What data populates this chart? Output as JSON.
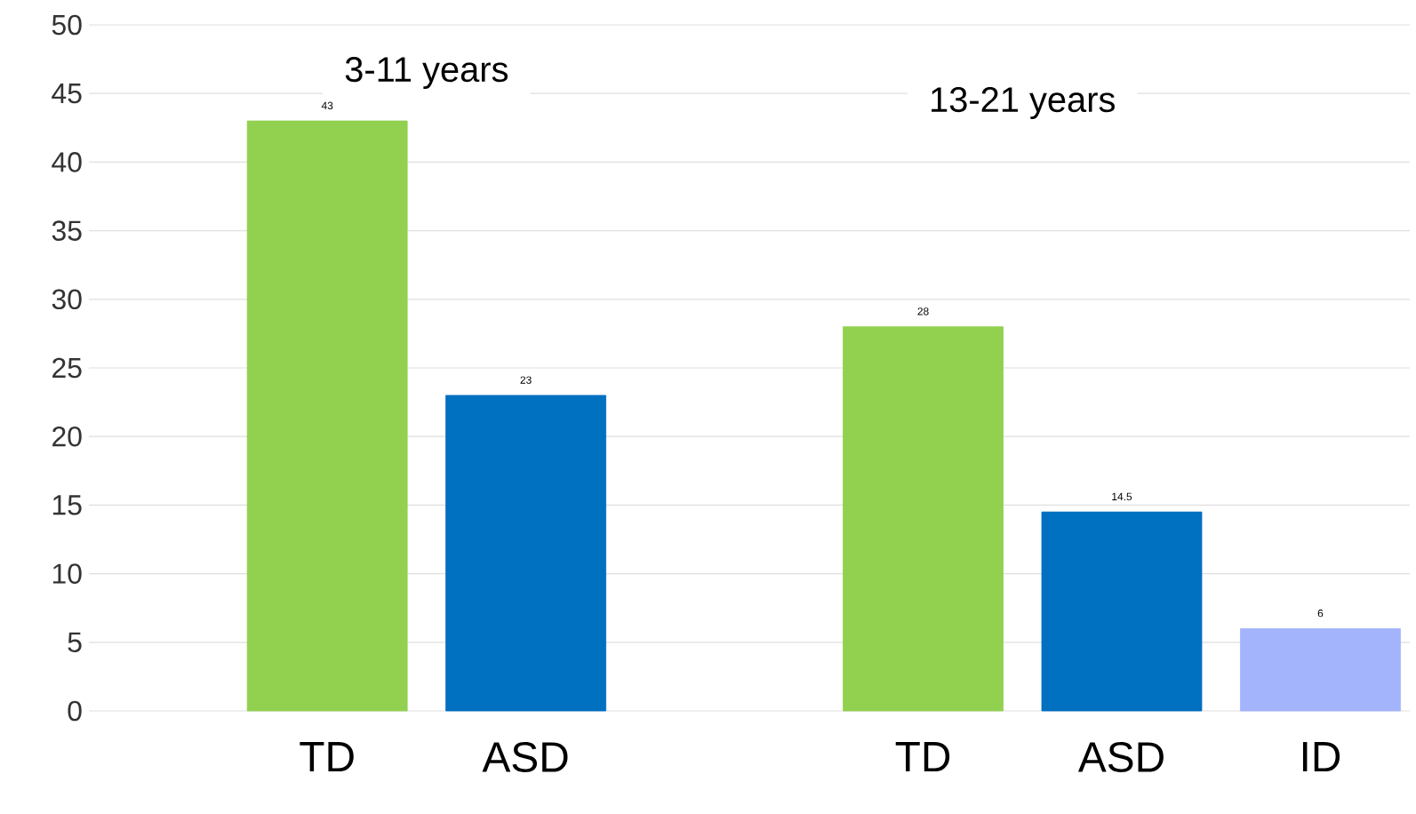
{
  "chart_data": {
    "type": "bar",
    "categories": [
      "TD",
      "ASD",
      null,
      "TD",
      "ASD",
      "ID"
    ],
    "values": [
      43,
      23,
      null,
      28,
      14.5,
      6
    ],
    "colors": [
      "#92d050",
      "#0070c0",
      null,
      "#92d050",
      "#0070c0",
      "#a3b4fc"
    ],
    "ylim": [
      0,
      50
    ],
    "yticks": [
      0,
      5,
      10,
      15,
      20,
      25,
      30,
      35,
      40,
      45,
      50
    ],
    "grid": "y",
    "data_labels": true,
    "annotations": [
      "3-11 years",
      "13-21 years"
    ]
  }
}
